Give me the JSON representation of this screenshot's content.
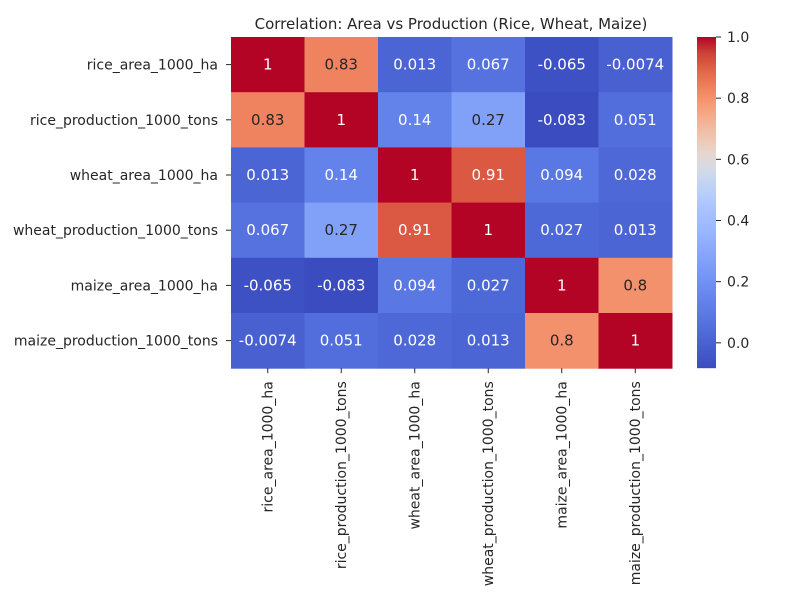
{
  "chart_data": {
    "type": "heatmap",
    "title": "Correlation: Area vs Production (Rice, Wheat, Maize)",
    "colormap": "coolwarm",
    "row_labels": [
      "rice_area_1000_ha",
      "rice_production_1000_tons",
      "wheat_area_1000_ha",
      "wheat_production_1000_tons",
      "maize_area_1000_ha",
      "maize_production_1000_tons"
    ],
    "col_labels": [
      "rice_area_1000_ha",
      "rice_production_1000_tons",
      "wheat_area_1000_ha",
      "wheat_production_1000_tons",
      "maize_area_1000_ha",
      "maize_production_1000_tons"
    ],
    "values": [
      [
        1,
        0.83,
        0.013,
        0.067,
        -0.065,
        -0.0074
      ],
      [
        0.83,
        1,
        0.14,
        0.27,
        -0.083,
        0.051
      ],
      [
        0.013,
        0.14,
        1,
        0.91,
        0.094,
        0.028
      ],
      [
        0.067,
        0.27,
        0.91,
        1,
        0.027,
        0.013
      ],
      [
        -0.065,
        -0.083,
        0.094,
        0.027,
        1,
        0.8
      ],
      [
        -0.0074,
        0.051,
        0.028,
        0.013,
        0.8,
        1
      ]
    ],
    "annotations": [
      [
        "1",
        "0.83",
        "0.013",
        "0.067",
        "-0.065",
        "-0.0074"
      ],
      [
        "0.83",
        "1",
        "0.14",
        "0.27",
        "-0.083",
        "0.051"
      ],
      [
        "0.013",
        "0.14",
        "1",
        "0.91",
        "0.094",
        "0.028"
      ],
      [
        "0.067",
        "0.27",
        "0.91",
        "1",
        "0.027",
        "0.013"
      ],
      [
        "-0.065",
        "-0.083",
        "0.094",
        "0.027",
        "1",
        "0.8"
      ],
      [
        "-0.0074",
        "0.051",
        "0.028",
        "0.013",
        "0.8",
        "1"
      ]
    ],
    "colorbar": {
      "vmin": -0.083,
      "vmax": 1.0,
      "ticks": [
        0.0,
        0.2,
        0.4,
        0.6,
        0.8,
        1.0
      ],
      "tick_labels": [
        "0.0",
        "0.2",
        "0.4",
        "0.6",
        "0.8",
        "1.0"
      ],
      "position": "right"
    }
  }
}
